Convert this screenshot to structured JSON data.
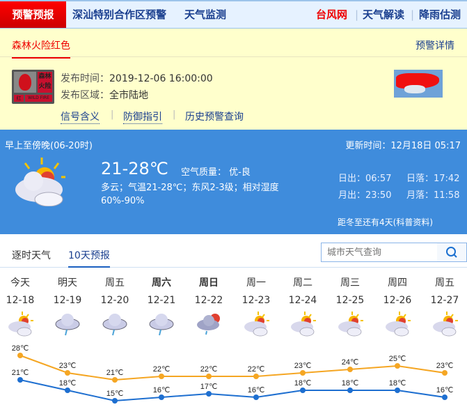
{
  "nav": {
    "active": "预警预报",
    "items": [
      "深汕特别合作区预警",
      "天气监测"
    ],
    "right": [
      "台风网",
      "天气解读",
      "降雨估测"
    ],
    "right_colors": [
      "#e00000",
      "#1a3f8f",
      "#1a3f8f"
    ]
  },
  "warning": {
    "tab": "森林火险红色",
    "detail_link": "预警详情",
    "icon": {
      "name": "forest-fire-red-warning-icon",
      "text_top": "森林火险",
      "text_left": "红",
      "text_right": "WILD FIRE"
    },
    "time_label": "发布时间：",
    "time": "2019-12-06 16:00:00",
    "area_label": "发布区域：",
    "area": "全市陆地",
    "links": [
      "信号含义",
      "防御指引",
      "历史预警查询"
    ]
  },
  "now": {
    "period": "早上至傍晚(06-20时)",
    "update": "更新时间：12月18日 05:17",
    "temp": "21-28℃",
    "aqi_label": "空气质量：",
    "aqi": "优-良",
    "desc": "多云；气温21-28℃；东风2-3级；相对湿度60%-90%",
    "sunrise": "日出：06:57",
    "sunset": "日落：17:42",
    "moonrise": "月出：23:50",
    "moonset": "月落：11:58",
    "solar_term": "距冬至还有4天(科普资料)",
    "icon": "partly-cloudy-icon"
  },
  "tabs": [
    "逐时天气",
    "10天预报"
  ],
  "search": {
    "placeholder": "城市天气查询"
  },
  "forecast": {
    "days": [
      "今天",
      "明天",
      "周五",
      "周六",
      "周日",
      "周一",
      "周二",
      "周三",
      "周四",
      "周五"
    ],
    "dates": [
      "12-18",
      "12-19",
      "12-20",
      "12-21",
      "12-22",
      "12-23",
      "12-24",
      "12-25",
      "12-26",
      "12-27"
    ],
    "icons": [
      "partly-cloudy",
      "light-rain",
      "light-rain",
      "light-rain",
      "cloudy-rain",
      "partly-cloudy",
      "partly-cloudy",
      "partly-cloudy",
      "partly-cloudy",
      "partly-cloudy"
    ]
  },
  "chart_data": {
    "type": "line",
    "x": [
      "12-18",
      "12-19",
      "12-20",
      "12-21",
      "12-22",
      "12-23",
      "12-24",
      "12-25",
      "12-26",
      "12-27"
    ],
    "series": [
      {
        "values": [
          28,
          23,
          21,
          22,
          22,
          22,
          23,
          24,
          25,
          23
        ],
        "color": "#f5a623"
      },
      {
        "values": [
          21,
          18,
          15,
          16,
          17,
          16,
          18,
          18,
          18,
          16
        ],
        "color": "#1e6fd0"
      }
    ],
    "unit": "℃"
  }
}
